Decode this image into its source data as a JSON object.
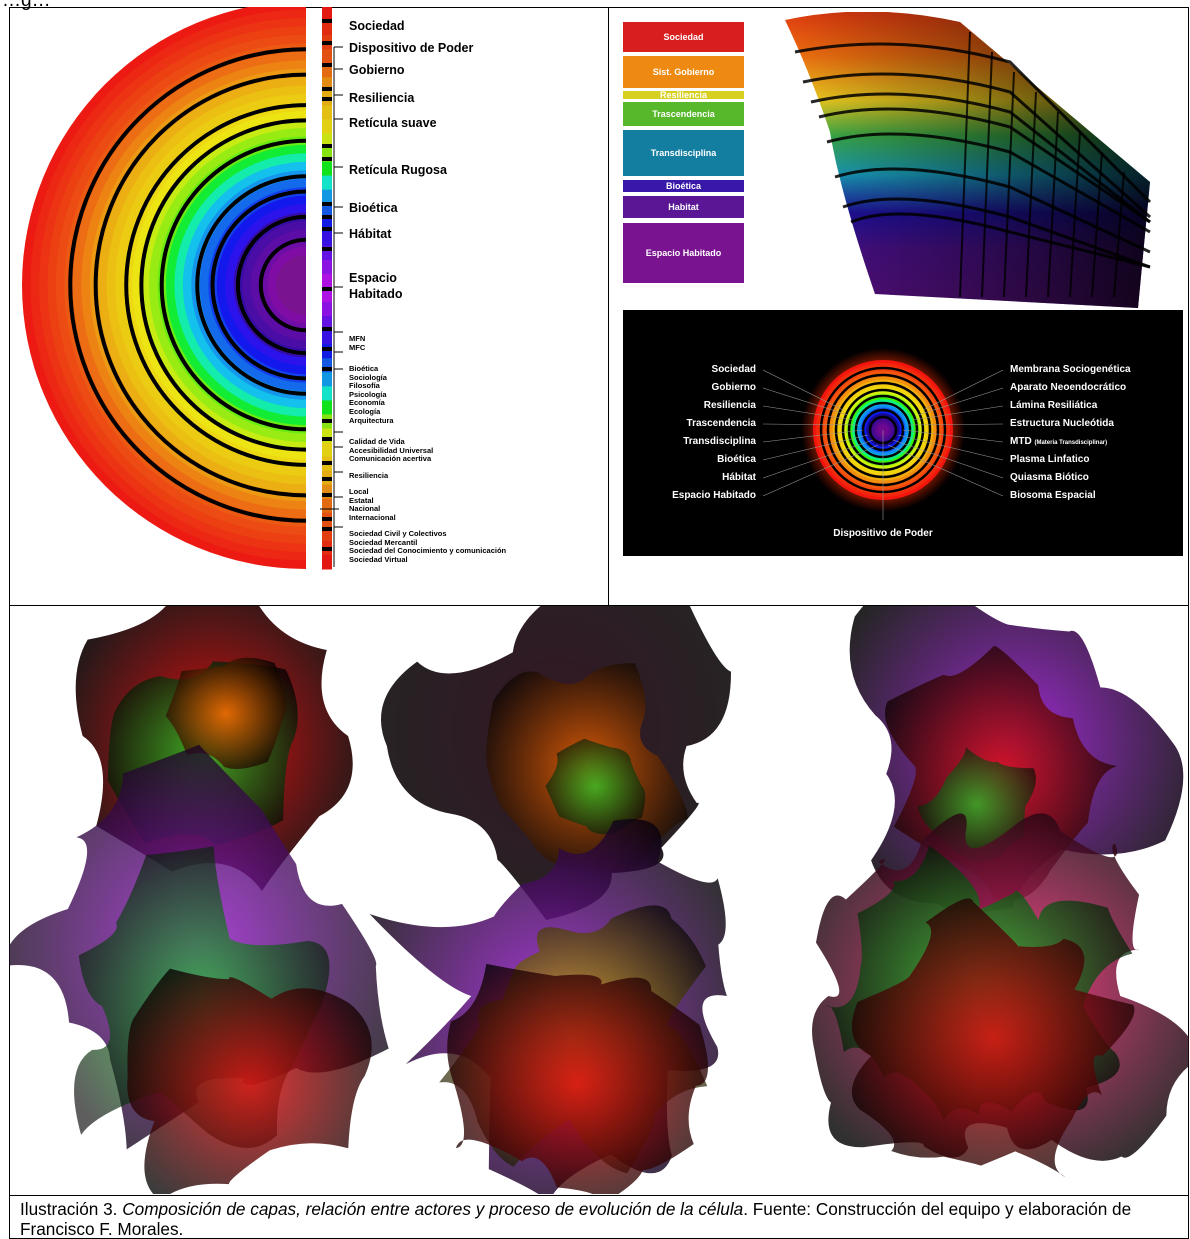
{
  "page": {
    "top_text": "…g…",
    "caption": {
      "prefix": "Ilustración 3. ",
      "title": "Composición de capas, relación entre actores y proceso de evolución de la célula",
      "suffix": ". Fuente: Construcción del equipo y elaboración de Francisco F. Morales."
    }
  },
  "left_diagram": {
    "main_labels": [
      "Sociedad",
      "Dispositivo de Poder",
      "Gobierno",
      "Resiliencia",
      "Retícula suave",
      "Retícula Rugosa",
      "Bioética",
      "Hábitat",
      "Espacio\nHabitado"
    ],
    "small_groups": [
      [
        "MFN",
        "MFC"
      ],
      [
        "Bioética",
        "Sociología",
        "Filosofía",
        "Psicología",
        "Economía",
        "Ecología",
        "Arquitectura"
      ],
      [
        "Calidad de Vida",
        "Accesibilidad Universal",
        "Comunicación acertiva"
      ],
      [
        "Resiliencia"
      ],
      [
        "Local",
        "Estatal",
        "Nacional",
        "Internacional"
      ],
      [
        "Sociedad Civil y Colectivos",
        "Sociedad Mercantil",
        "Sociedad del Conocimiento y comunicación",
        "Sociedad Virtual"
      ]
    ]
  },
  "legend": {
    "items": [
      {
        "label": "Sociedad",
        "color": "#d91e1e"
      },
      {
        "label": "Sist. Gobierno",
        "color": "#ee8a12"
      },
      {
        "label": "Resiliencia",
        "color": "#d8d020"
      },
      {
        "label": "Trascendencia",
        "color": "#56b82a"
      },
      {
        "label": "Transdisciplina",
        "color": "#137ea0"
      },
      {
        "label": "Bioética",
        "color": "#3818a8"
      },
      {
        "label": "Habitat",
        "color": "#5b1696"
      },
      {
        "label": "Espacio Habitado",
        "color": "#7a1390"
      }
    ]
  },
  "circle_panel": {
    "left_labels": [
      "Sociedad",
      "Gobierno",
      "Resiliencia",
      "Trascendencia",
      "Transdisciplina",
      "Bioética",
      "Hábitat",
      "Espacio Habitado"
    ],
    "right_labels": [
      "Membrana Sociogenética",
      "Aparato Neoendocrático",
      "Lámina Resiliática",
      "Estructura Nucleótida",
      "MTD",
      "Plasma Linfatico",
      "Quiasma Biótico",
      "Biosoma Espacial"
    ],
    "mtd_note": "(Materia Transdisciplinar)",
    "bottom_label": "Dispositivo de Poder"
  }
}
